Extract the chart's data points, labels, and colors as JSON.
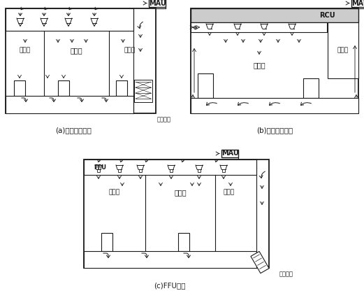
{
  "title_a": "(a)集中送风系统",
  "title_b": "(b)隙道送风系统",
  "title_c": "(c)FFU系统",
  "label_mau": "MAU",
  "label_rcu": "RCU",
  "label_ffu": "FFU",
  "label_dry_cooler": "干表冷器",
  "label_weixiu": "维修区",
  "label_caozuo": "操作区",
  "bg_color": "#ffffff",
  "lc": "#1a1a1a",
  "font_size_label": 6.5,
  "font_size_caption": 7.5,
  "font_size_box": 7
}
